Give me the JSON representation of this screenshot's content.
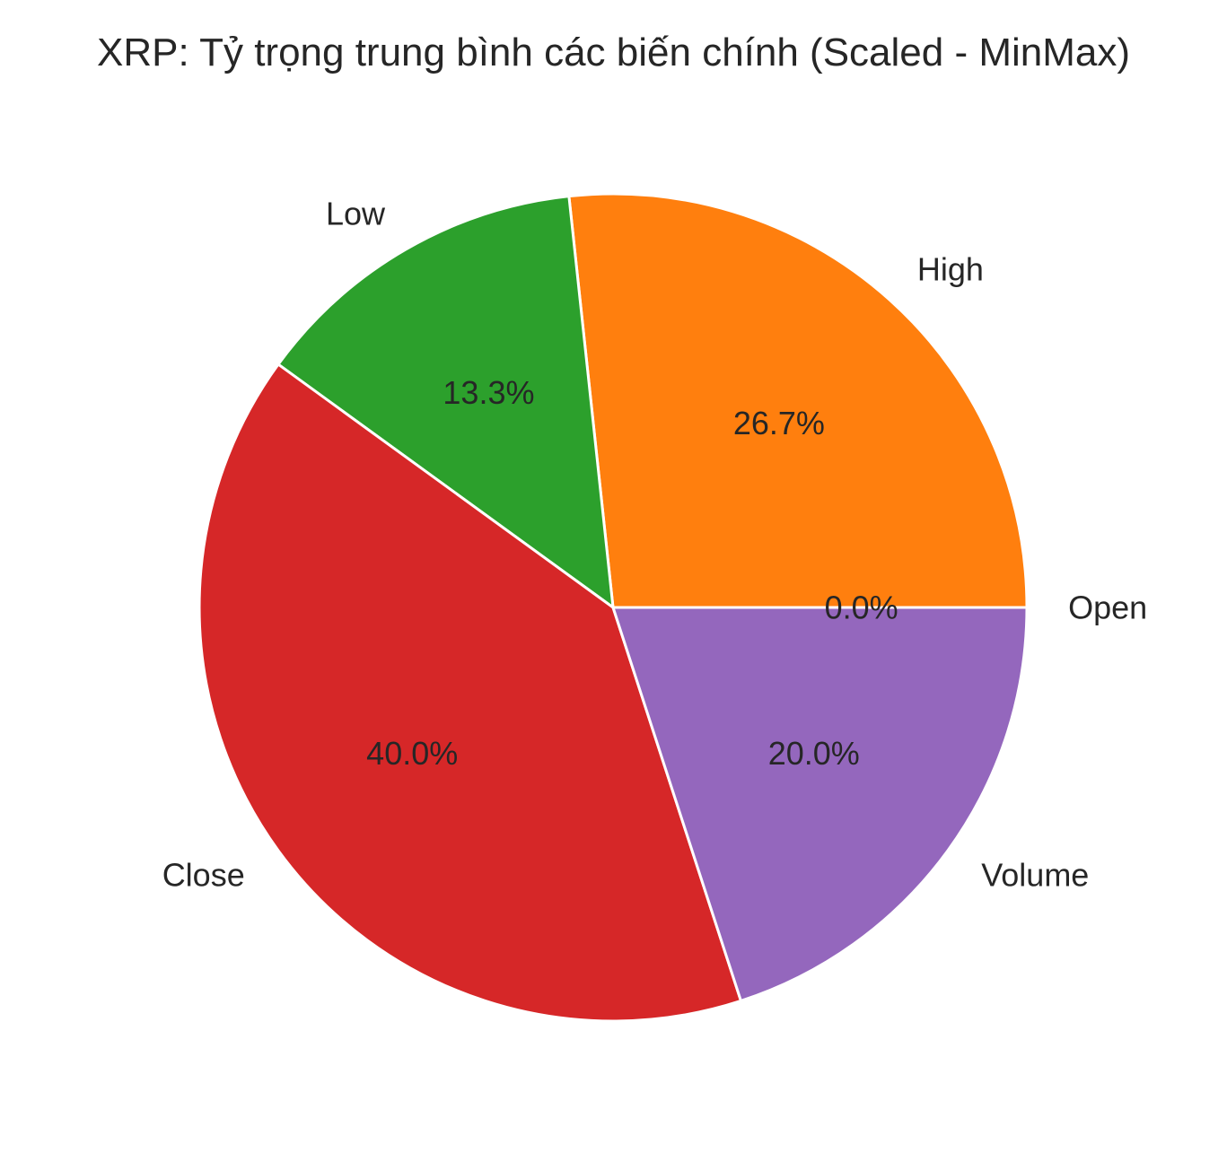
{
  "chart_data": {
    "type": "pie",
    "title": "XRP: Tỷ trọng trung bình các biến chính (Scaled - MinMax)",
    "slices": [
      {
        "label": "Open",
        "value": 0.0,
        "pct_label": "0.0%",
        "color": "#1f77b4"
      },
      {
        "label": "High",
        "value": 26.7,
        "pct_label": "26.7%",
        "color": "#ff7f0e"
      },
      {
        "label": "Low",
        "value": 13.3,
        "pct_label": "13.3%",
        "color": "#2ca02c"
      },
      {
        "label": "Close",
        "value": 40.0,
        "pct_label": "40.0%",
        "color": "#d62728"
      },
      {
        "label": "Volume",
        "value": 20.0,
        "pct_label": "20.0%",
        "color": "#9467bd"
      }
    ],
    "start_angle": "3 o'clock",
    "direction": "counter-clockwise"
  }
}
